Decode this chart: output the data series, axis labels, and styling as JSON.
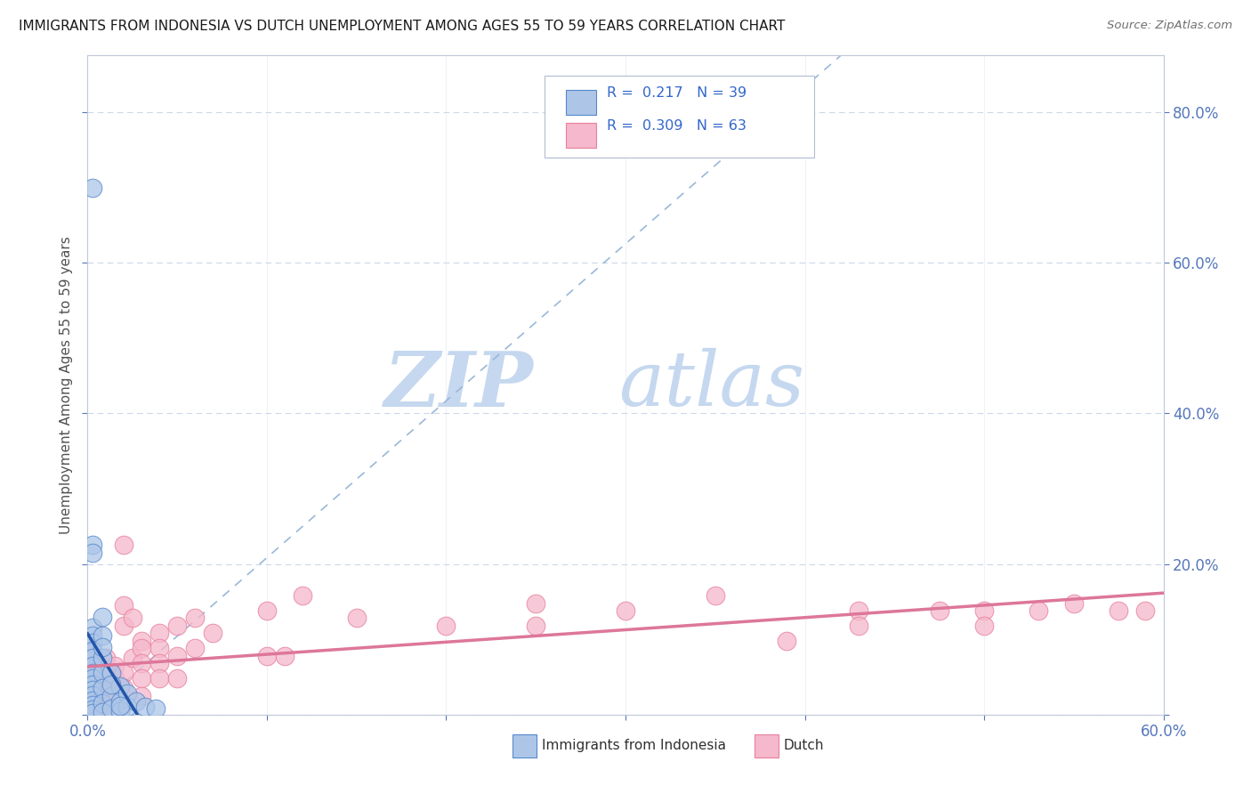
{
  "title": "IMMIGRANTS FROM INDONESIA VS DUTCH UNEMPLOYMENT AMONG AGES 55 TO 59 YEARS CORRELATION CHART",
  "source": "Source: ZipAtlas.com",
  "ylabel": "Unemployment Among Ages 55 to 59 years",
  "xlim": [
    0.0,
    0.6
  ],
  "ylim": [
    0.0,
    0.875
  ],
  "xticks": [
    0.0,
    0.1,
    0.2,
    0.3,
    0.4,
    0.5,
    0.6
  ],
  "xticklabels": [
    "0.0%",
    "",
    "",
    "",
    "",
    "",
    "60.0%"
  ],
  "yticks": [
    0.0,
    0.2,
    0.4,
    0.6,
    0.8
  ],
  "yticklabels_right": [
    "",
    "20.0%",
    "40.0%",
    "60.0%",
    "80.0%"
  ],
  "color_blue": "#adc6e8",
  "color_pink": "#f5b8cc",
  "color_edge_blue": "#5588cc",
  "color_edge_pink": "#e8809c",
  "color_line_blue": "#2255aa",
  "color_line_pink": "#dd7799",
  "color_trendline_dash": "#99b8d8",
  "watermark_zip": "ZIP",
  "watermark_atlas": "atlas",
  "indonesia_points": [
    [
      0.003,
      0.7
    ],
    [
      0.003,
      0.225
    ],
    [
      0.003,
      0.215
    ],
    [
      0.003,
      0.115
    ],
    [
      0.003,
      0.105
    ],
    [
      0.003,
      0.095
    ],
    [
      0.003,
      0.085
    ],
    [
      0.003,
      0.075
    ],
    [
      0.003,
      0.065
    ],
    [
      0.003,
      0.055
    ],
    [
      0.003,
      0.048
    ],
    [
      0.003,
      0.04
    ],
    [
      0.003,
      0.033
    ],
    [
      0.003,
      0.026
    ],
    [
      0.003,
      0.019
    ],
    [
      0.003,
      0.013
    ],
    [
      0.003,
      0.007
    ],
    [
      0.003,
      0.002
    ],
    [
      0.008,
      0.105
    ],
    [
      0.008,
      0.075
    ],
    [
      0.008,
      0.055
    ],
    [
      0.008,
      0.035
    ],
    [
      0.008,
      0.015
    ],
    [
      0.008,
      0.003
    ],
    [
      0.013,
      0.055
    ],
    [
      0.013,
      0.025
    ],
    [
      0.013,
      0.008
    ],
    [
      0.018,
      0.038
    ],
    [
      0.018,
      0.018
    ],
    [
      0.018,
      0.005
    ],
    [
      0.022,
      0.028
    ],
    [
      0.022,
      0.01
    ],
    [
      0.027,
      0.018
    ],
    [
      0.032,
      0.01
    ],
    [
      0.038,
      0.008
    ],
    [
      0.008,
      0.13
    ],
    [
      0.008,
      0.09
    ],
    [
      0.013,
      0.04
    ],
    [
      0.018,
      0.012
    ]
  ],
  "dutch_points": [
    [
      0.003,
      0.082
    ],
    [
      0.003,
      0.065
    ],
    [
      0.003,
      0.048
    ],
    [
      0.003,
      0.038
    ],
    [
      0.003,
      0.028
    ],
    [
      0.003,
      0.018
    ],
    [
      0.003,
      0.008
    ],
    [
      0.003,
      0.001
    ],
    [
      0.01,
      0.075
    ],
    [
      0.01,
      0.055
    ],
    [
      0.01,
      0.038
    ],
    [
      0.01,
      0.028
    ],
    [
      0.01,
      0.018
    ],
    [
      0.01,
      0.008
    ],
    [
      0.015,
      0.065
    ],
    [
      0.015,
      0.048
    ],
    [
      0.015,
      0.028
    ],
    [
      0.015,
      0.01
    ],
    [
      0.015,
      0.001
    ],
    [
      0.02,
      0.145
    ],
    [
      0.02,
      0.118
    ],
    [
      0.02,
      0.055
    ],
    [
      0.02,
      0.035
    ],
    [
      0.02,
      0.015
    ],
    [
      0.025,
      0.128
    ],
    [
      0.025,
      0.075
    ],
    [
      0.03,
      0.098
    ],
    [
      0.03,
      0.088
    ],
    [
      0.03,
      0.068
    ],
    [
      0.03,
      0.048
    ],
    [
      0.03,
      0.025
    ],
    [
      0.04,
      0.108
    ],
    [
      0.04,
      0.088
    ],
    [
      0.04,
      0.068
    ],
    [
      0.04,
      0.048
    ],
    [
      0.05,
      0.118
    ],
    [
      0.05,
      0.078
    ],
    [
      0.05,
      0.048
    ],
    [
      0.06,
      0.128
    ],
    [
      0.06,
      0.088
    ],
    [
      0.07,
      0.108
    ],
    [
      0.1,
      0.138
    ],
    [
      0.1,
      0.078
    ],
    [
      0.11,
      0.078
    ],
    [
      0.12,
      0.158
    ],
    [
      0.15,
      0.128
    ],
    [
      0.2,
      0.118
    ],
    [
      0.25,
      0.148
    ],
    [
      0.25,
      0.118
    ],
    [
      0.3,
      0.138
    ],
    [
      0.35,
      0.158
    ],
    [
      0.39,
      0.098
    ],
    [
      0.43,
      0.138
    ],
    [
      0.43,
      0.118
    ],
    [
      0.475,
      0.138
    ],
    [
      0.5,
      0.138
    ],
    [
      0.5,
      0.118
    ],
    [
      0.53,
      0.138
    ],
    [
      0.55,
      0.148
    ],
    [
      0.575,
      0.138
    ],
    [
      0.59,
      0.138
    ],
    [
      0.02,
      0.225
    ]
  ]
}
